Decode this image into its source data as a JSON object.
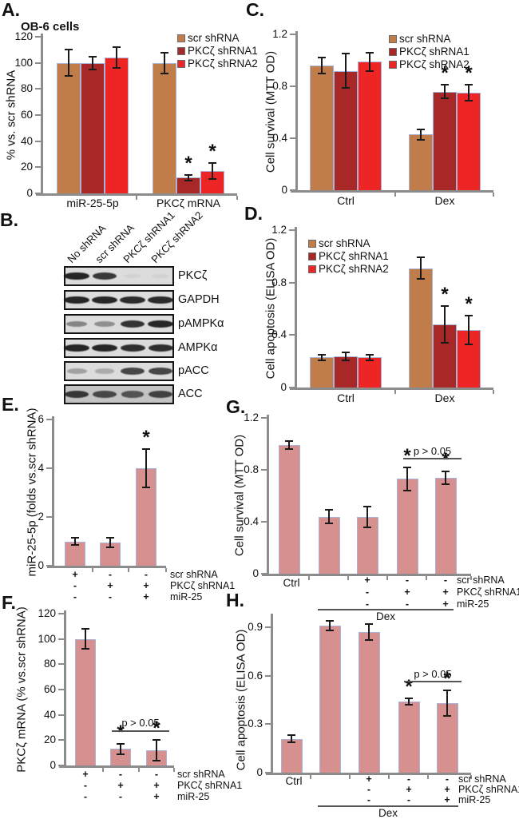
{
  "figure": {
    "panels": {
      "A": {
        "label": "A.",
        "subtitle": "OB-6 cells"
      },
      "B": {
        "label": "B."
      },
      "C": {
        "label": "C."
      },
      "D": {
        "label": "D."
      },
      "E": {
        "label": "E."
      },
      "F": {
        "label": "F."
      },
      "G": {
        "label": "G."
      },
      "H": {
        "label": "H."
      }
    }
  },
  "palette": {
    "scr_shRNA": "#c07d4a",
    "PKCz_shRNA1": "#a82828",
    "PKCz_shRNA2": "#ee2525",
    "single_bar": "#d6908f",
    "bar_border": "#a9b3d8",
    "axis": "#8c8c8c",
    "text": "#111111",
    "annotation_line": "#555555",
    "blot_bg": "#dcdcdc",
    "blot_bg_dark": "#c3c3c3",
    "band": "#1d1d1d"
  },
  "chart_data": [
    {
      "panel": "A",
      "type": "bar",
      "title": "OB-6 cells",
      "ylabel": "% vs. scr shRNA",
      "ylim": [
        0,
        120
      ],
      "yticks": [
        0,
        20,
        40,
        60,
        80,
        100,
        120
      ],
      "ytick_labels": [
        "0",
        "20",
        "40",
        "60",
        "80",
        "100",
        "120"
      ],
      "categories": [
        "miR-25-5p",
        "PKCζ mRNA"
      ],
      "legend_position": "top-right",
      "series": [
        {
          "name": "scr shRNA",
          "color_key": "scr_shRNA",
          "values": [
            100,
            100
          ],
          "errors": [
            10,
            8
          ],
          "sig": [
            false,
            false
          ]
        },
        {
          "name": "PKCζ shRNA1",
          "color_key": "PKCz_shRNA1",
          "values": [
            100,
            12
          ],
          "errors": [
            5,
            2
          ],
          "sig": [
            false,
            true
          ]
        },
        {
          "name": "PKCζ shRNA2",
          "color_key": "PKCz_shRNA2",
          "values": [
            104,
            17
          ],
          "errors": [
            8,
            6
          ],
          "sig": [
            false,
            true
          ]
        }
      ]
    },
    {
      "panel": "C",
      "type": "bar",
      "ylabel": "Cell survival (MTT OD)",
      "ylim": [
        0,
        1.2
      ],
      "yticks": [
        0,
        0.4,
        0.8,
        1.2
      ],
      "ytick_labels": [
        "0",
        "0.4",
        "0.8",
        "1.2"
      ],
      "categories": [
        "Ctrl",
        "Dex"
      ],
      "legend_position": "top-right",
      "series": [
        {
          "name": "scr shRNA",
          "color_key": "scr_shRNA",
          "values": [
            0.96,
            0.43
          ],
          "errors": [
            0.06,
            0.04
          ],
          "sig": [
            false,
            false
          ]
        },
        {
          "name": "PKCζ shRNA1",
          "color_key": "PKCz_shRNA1",
          "values": [
            0.92,
            0.76
          ],
          "errors": [
            0.13,
            0.05
          ],
          "sig": [
            false,
            true
          ]
        },
        {
          "name": "PKCζ shRNA2",
          "color_key": "PKCz_shRNA2",
          "values": [
            0.99,
            0.75
          ],
          "errors": [
            0.07,
            0.06
          ],
          "sig": [
            false,
            true
          ]
        }
      ]
    },
    {
      "panel": "D",
      "type": "bar",
      "ylabel": "Cell apoptosis (ELISA OD)",
      "ylim": [
        0,
        1.2
      ],
      "yticks": [
        0,
        0.4,
        0.8,
        1.2
      ],
      "ytick_labels": [
        "0",
        "0.4",
        "0.8",
        "1.2"
      ],
      "categories": [
        "Ctrl",
        "Dex"
      ],
      "legend_position": "top-left",
      "series": [
        {
          "name": "scr shRNA",
          "color_key": "scr_shRNA",
          "values": [
            0.23,
            0.91
          ],
          "errors": [
            0.02,
            0.08
          ],
          "sig": [
            false,
            false
          ]
        },
        {
          "name": "PKCζ shRNA1",
          "color_key": "PKCz_shRNA1",
          "values": [
            0.24,
            0.48
          ],
          "errors": [
            0.03,
            0.14
          ],
          "sig": [
            false,
            true
          ]
        },
        {
          "name": "PKCζ shRNA2",
          "color_key": "PKCz_shRNA2",
          "values": [
            0.23,
            0.44
          ],
          "errors": [
            0.02,
            0.11
          ],
          "sig": [
            false,
            true
          ]
        }
      ]
    },
    {
      "panel": "E",
      "type": "bar",
      "ylabel": "miR-25-5p (folds vs.scr shRNA)",
      "ylim": [
        0,
        6
      ],
      "yticks": [
        0,
        2,
        4,
        6
      ],
      "ytick_labels": [
        "0",
        "2",
        "4",
        "6"
      ],
      "bar_color_key": "single_bar",
      "values": [
        1.0,
        0.95,
        4.0
      ],
      "errors": [
        0.15,
        0.2,
        0.8
      ],
      "sig": [
        false,
        false,
        true
      ],
      "condition_rows": [
        {
          "label": "scr shRNA",
          "signs": [
            "+",
            "-",
            "-"
          ]
        },
        {
          "label": "PKCζ shRNA1",
          "signs": [
            "-",
            "+",
            "+"
          ]
        },
        {
          "label": "miR-25",
          "signs": [
            "-",
            "-",
            "+"
          ]
        }
      ]
    },
    {
      "panel": "F",
      "type": "bar",
      "ylabel": "PKCζ mRNA  (% vs.scr shRNA)",
      "ylim": [
        0,
        120
      ],
      "yticks": [
        0,
        20,
        40,
        60,
        80,
        100,
        120
      ],
      "ytick_labels": [
        "0",
        "20",
        "40",
        "60",
        "80",
        "100",
        "120"
      ],
      "bar_color_key": "single_bar",
      "values": [
        100,
        13,
        12
      ],
      "errors": [
        8,
        4,
        8
      ],
      "sig": [
        false,
        true,
        true
      ],
      "bracket_label": "p > 0.05",
      "condition_rows": [
        {
          "label": "scr shRNA",
          "signs": [
            "+",
            "-",
            "-"
          ]
        },
        {
          "label": "PKCζ shRNA1",
          "signs": [
            "-",
            "+",
            "+"
          ]
        },
        {
          "label": "miR-25",
          "signs": [
            "-",
            "-",
            "+"
          ]
        }
      ]
    },
    {
      "panel": "G",
      "type": "bar",
      "ylabel": "Cell survival (MTT OD)",
      "ylim": [
        0,
        1.2
      ],
      "yticks": [
        0,
        0.4,
        0.8,
        1.2
      ],
      "ytick_labels": [
        "0",
        "0.4",
        "0.8",
        "1.2"
      ],
      "bar_color_key": "single_bar",
      "x_first_label": "Ctrl",
      "values": [
        0.99,
        0.44,
        0.44,
        0.73,
        0.74
      ],
      "errors": [
        0.03,
        0.05,
        0.08,
        0.09,
        0.05
      ],
      "sig": [
        false,
        false,
        false,
        true,
        true
      ],
      "bracket_label": "p > 0.05",
      "group_annotation": "Dex",
      "condition_rows": [
        {
          "label": "scr shRNA",
          "signs": [
            "+",
            "-",
            "-"
          ]
        },
        {
          "label": "PKCζ shRNA1",
          "signs": [
            "-",
            "+",
            "+"
          ]
        },
        {
          "label": "miR-25",
          "signs": [
            "-",
            "-",
            "+"
          ]
        }
      ]
    },
    {
      "panel": "H",
      "type": "bar",
      "ylabel": "Cell apoptosis (ELISA OD)",
      "ylim": [
        0,
        0.97
      ],
      "yticks": [
        0,
        0.3,
        0.6,
        0.9
      ],
      "ytick_labels": [
        "0",
        "0.3",
        "0.6",
        "0.9"
      ],
      "bar_color_key": "single_bar",
      "x_first_label": "Ctrl",
      "values": [
        0.21,
        0.91,
        0.87,
        0.44,
        0.43
      ],
      "errors": [
        0.02,
        0.03,
        0.05,
        0.02,
        0.08
      ],
      "sig": [
        false,
        false,
        false,
        true,
        true
      ],
      "bracket_label": "p > 0.05",
      "group_annotation": "Dex",
      "condition_rows": [
        {
          "label": "scr shRNA",
          "signs": [
            "+",
            "-",
            "-"
          ]
        },
        {
          "label": "PKCζ shRNA1",
          "signs": [
            "-",
            "+",
            "+"
          ]
        },
        {
          "label": "miR-25",
          "signs": [
            "-",
            "-",
            "+"
          ]
        }
      ]
    }
  ],
  "western_blot": {
    "panel": "B",
    "lanes": [
      "No shRNA",
      "scr shRNA",
      "PKCζ shRNA1",
      "PKCζ shRNA2"
    ],
    "rows": [
      {
        "label": "PKCζ",
        "intensities": [
          0.95,
          0.85,
          0.05,
          0.05
        ],
        "dark_bg": false
      },
      {
        "label": "GAPDH",
        "intensities": [
          0.95,
          0.95,
          0.92,
          0.92
        ],
        "dark_bg": false
      },
      {
        "label": "pAMPKα",
        "intensities": [
          0.45,
          0.4,
          0.88,
          0.95
        ],
        "dark_bg": false
      },
      {
        "label": "AMPKα",
        "intensities": [
          0.95,
          0.95,
          0.9,
          0.9
        ],
        "dark_bg": false
      },
      {
        "label": "pACC",
        "intensities": [
          0.3,
          0.25,
          0.78,
          0.78
        ],
        "dark_bg": false
      },
      {
        "label": "ACC",
        "intensities": [
          0.85,
          0.75,
          0.68,
          0.78
        ],
        "dark_bg": true
      }
    ]
  }
}
